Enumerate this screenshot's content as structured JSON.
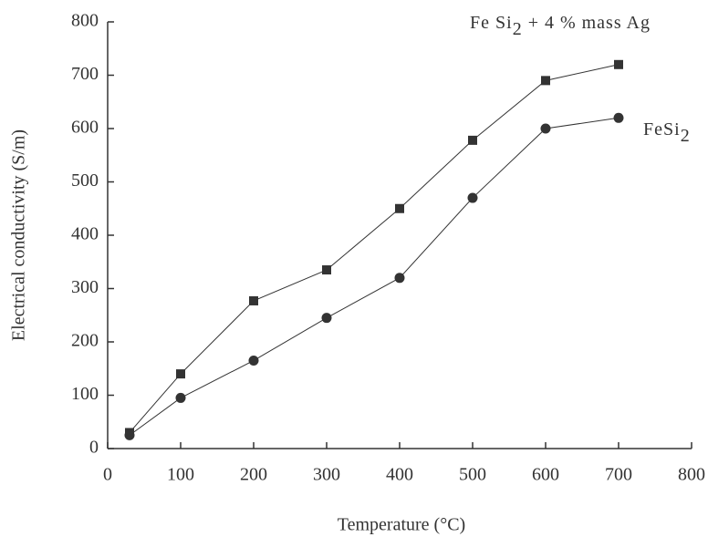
{
  "chart_data": {
    "type": "line",
    "xlabel": "Temperature (°C)",
    "ylabel": "Electrical conductivity (S/m)",
    "series": [
      {
        "name": "Fe Si2 + 4 % mass Ag",
        "color": "#333333",
        "marker": "square",
        "x": [
          30,
          100,
          200,
          300,
          400,
          500,
          600,
          700
        ],
        "values": [
          30,
          140,
          277,
          335,
          450,
          578,
          690,
          720
        ]
      },
      {
        "name": "FeSi2",
        "color": "#333333",
        "marker": "circle",
        "x": [
          30,
          100,
          200,
          300,
          400,
          500,
          600,
          700
        ],
        "values": [
          25,
          95,
          165,
          245,
          320,
          470,
          600,
          620
        ]
      }
    ],
    "xlim": [
      0,
      800
    ],
    "xticks": [
      0,
      100,
      200,
      300,
      400,
      500,
      600,
      700,
      800
    ],
    "ylim": [
      0,
      800
    ],
    "yticks": [
      0,
      100,
      200,
      300,
      400,
      500,
      600,
      700,
      800
    ],
    "grid": false
  }
}
